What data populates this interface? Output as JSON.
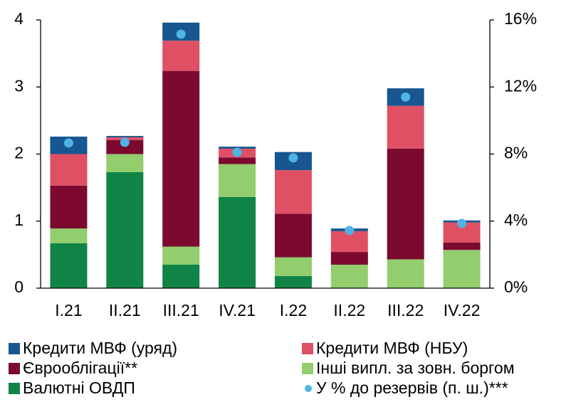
{
  "chart_data": {
    "type": "bar",
    "stacked": true,
    "categories": [
      "I.21",
      "II.21",
      "III.21",
      "IV.21",
      "I.22",
      "II.22",
      "III.22",
      "IV.22"
    ],
    "series": [
      {
        "name": "Валютні ОВДП",
        "color": "#0f8446",
        "values": [
          0.67,
          1.73,
          0.35,
          1.36,
          0.18,
          0,
          0,
          0
        ]
      },
      {
        "name": "Інші випл. за зовн. боргом",
        "color": "#92cd6e",
        "values": [
          0.22,
          0.27,
          0.27,
          0.49,
          0.28,
          0.35,
          0.43,
          0.57
        ]
      },
      {
        "name": "Єврооблігації**",
        "color": "#7b0a2e",
        "values": [
          0.64,
          0.21,
          2.62,
          0.1,
          0.65,
          0.19,
          1.65,
          0.11
        ]
      },
      {
        "name": "Кредити МВФ (НБУ)",
        "color": "#e05065",
        "values": [
          0.47,
          0.04,
          0.45,
          0.13,
          0.65,
          0.31,
          0.64,
          0.3
        ]
      },
      {
        "name": "Кредити МВФ (уряд)",
        "color": "#17568f",
        "values": [
          0.26,
          0.02,
          0.27,
          0.03,
          0.27,
          0.04,
          0.26,
          0.03
        ]
      },
      {
        "name": "У % до резервів (п. ш.)***",
        "color": "#4fb3e8",
        "axis": "y2",
        "values": [
          8.66,
          8.7,
          15.15,
          8.1,
          7.77,
          3.44,
          11.4,
          3.86
        ]
      }
    ],
    "ylim": [
      0,
      4
    ],
    "yticks": [
      0,
      1,
      2,
      3,
      4
    ],
    "y2lim": [
      0,
      16
    ],
    "y2ticks": [
      {
        "value": 0,
        "label": "0%"
      },
      {
        "value": 4,
        "label": "4%"
      },
      {
        "value": 8,
        "label": "8%"
      },
      {
        "value": 12,
        "label": "12%"
      },
      {
        "value": 16,
        "label": "16%"
      }
    ]
  }
}
